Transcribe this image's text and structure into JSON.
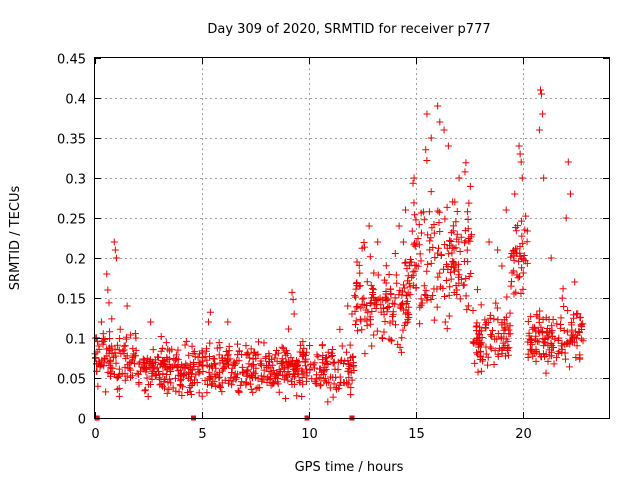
{
  "chart_data": {
    "type": "scatter",
    "title": "Day 309 of 2020, SRMTID for receiver p777",
    "xlabel": "GPS time / hours",
    "ylabel": "SRMTID / TECUs",
    "xlim": [
      0,
      24
    ],
    "ylim": [
      0,
      0.45
    ],
    "xticks": [
      0,
      5,
      10,
      15,
      20
    ],
    "yticks": [
      0,
      0.05,
      0.1,
      0.15,
      0.2,
      0.25,
      0.3,
      0.35,
      0.4,
      0.45
    ],
    "xtick_labels": [
      "0",
      "5",
      "10",
      "15",
      "20"
    ],
    "ytick_labels": [
      "0",
      "0.05",
      "0.1",
      "0.15",
      "0.2",
      "0.25",
      "0.3",
      "0.35",
      "0.4",
      "0.45"
    ],
    "grid": true,
    "marker": "+",
    "color": "#ee0000",
    "series": [
      {
        "name": "SRMTID",
        "segments": [
          {
            "x": [
              0.0,
              2.0
            ],
            "mean": 0.07,
            "spread": 0.05,
            "spikes": [
              [
                0.9,
                0.22
              ],
              [
                0.95,
                0.21
              ],
              [
                1.0,
                0.2
              ],
              [
                0.55,
                0.18
              ],
              [
                0.6,
                0.16
              ],
              [
                1.5,
                0.14
              ],
              [
                0.3,
                0.12
              ]
            ]
          },
          {
            "x": [
              2.0,
              12.1
            ],
            "mean": 0.06,
            "spread": 0.04,
            "spikes": [
              [
                9.2,
                0.157
              ],
              [
                9.25,
                0.148
              ],
              [
                9.3,
                0.13
              ],
              [
                2.6,
                0.12
              ],
              [
                5.3,
                0.12
              ],
              [
                6.2,
                0.12
              ],
              [
                11.8,
                0.14
              ],
              [
                12.0,
                0.13
              ]
            ]
          },
          {
            "x": [
              12.1,
              14.7
            ],
            "mean": 0.14,
            "spread": 0.07,
            "spikes": [
              [
                12.8,
                0.24
              ],
              [
                13.2,
                0.22
              ],
              [
                14.4,
                0.22
              ],
              [
                14.2,
                0.24
              ],
              [
                14.5,
                0.26
              ]
            ]
          },
          {
            "x": [
              14.7,
              17.6
            ],
            "mean": 0.2,
            "spread": 0.1,
            "spikes": [
              [
                15.5,
                0.38
              ],
              [
                16.0,
                0.39
              ],
              [
                16.1,
                0.37
              ],
              [
                16.3,
                0.36
              ],
              [
                16.5,
                0.34
              ],
              [
                15.7,
                0.35
              ],
              [
                14.9,
                0.3
              ],
              [
                17.0,
                0.3
              ],
              [
                16.8,
                0.27
              ]
            ]
          },
          {
            "x": [
              17.6,
              19.4
            ],
            "mean": 0.1,
            "spread": 0.05,
            "spikes": [
              [
                18.4,
                0.22
              ],
              [
                18.8,
                0.21
              ],
              [
                19.2,
                0.26
              ],
              [
                19.0,
                0.19
              ]
            ]
          },
          {
            "x": [
              19.4,
              20.2
            ],
            "mean": 0.2,
            "spread": 0.08,
            "spikes": [
              [
                19.8,
                0.34
              ],
              [
                19.85,
                0.33
              ],
              [
                19.9,
                0.32
              ],
              [
                19.95,
                0.3
              ],
              [
                19.6,
                0.28
              ]
            ]
          },
          {
            "x": [
              20.2,
              22.8
            ],
            "mean": 0.1,
            "spread": 0.05,
            "spikes": [
              [
                20.8,
                0.41
              ],
              [
                20.85,
                0.405
              ],
              [
                20.9,
                0.38
              ],
              [
                20.75,
                0.36
              ],
              [
                20.95,
                0.3
              ],
              [
                22.1,
                0.32
              ],
              [
                22.2,
                0.28
              ],
              [
                22.0,
                0.25
              ],
              [
                21.3,
                0.2
              ],
              [
                22.4,
                0.17
              ]
            ]
          }
        ]
      }
    ],
    "data_gaps_hours": [
      0.1,
      4.6,
      9.9,
      12.0
    ]
  }
}
